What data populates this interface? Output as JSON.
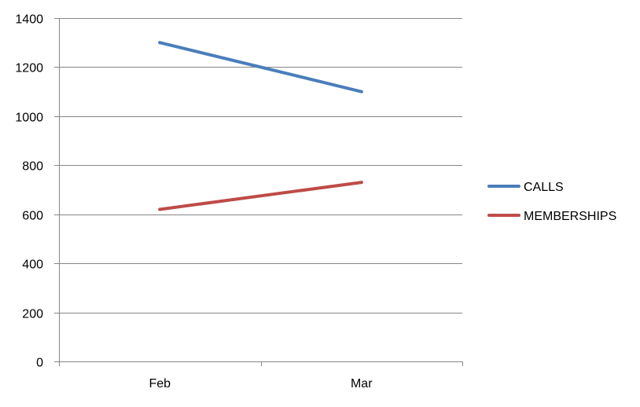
{
  "chart_data": {
    "type": "line",
    "title": "",
    "xlabel": "",
    "ylabel": "",
    "categories": [
      "Feb",
      "Mar"
    ],
    "ylim": [
      0,
      1400
    ],
    "yticks": [
      0,
      200,
      400,
      600,
      800,
      1000,
      1200,
      1400
    ],
    "grid": true,
    "legend_position": "right",
    "series": [
      {
        "name": "CALLS",
        "values": [
          1300,
          1100
        ],
        "color": "#4a7ebb"
      },
      {
        "name": "MEMBERSHIPS",
        "values": [
          620,
          730
        ],
        "color": "#be4b48"
      }
    ]
  }
}
